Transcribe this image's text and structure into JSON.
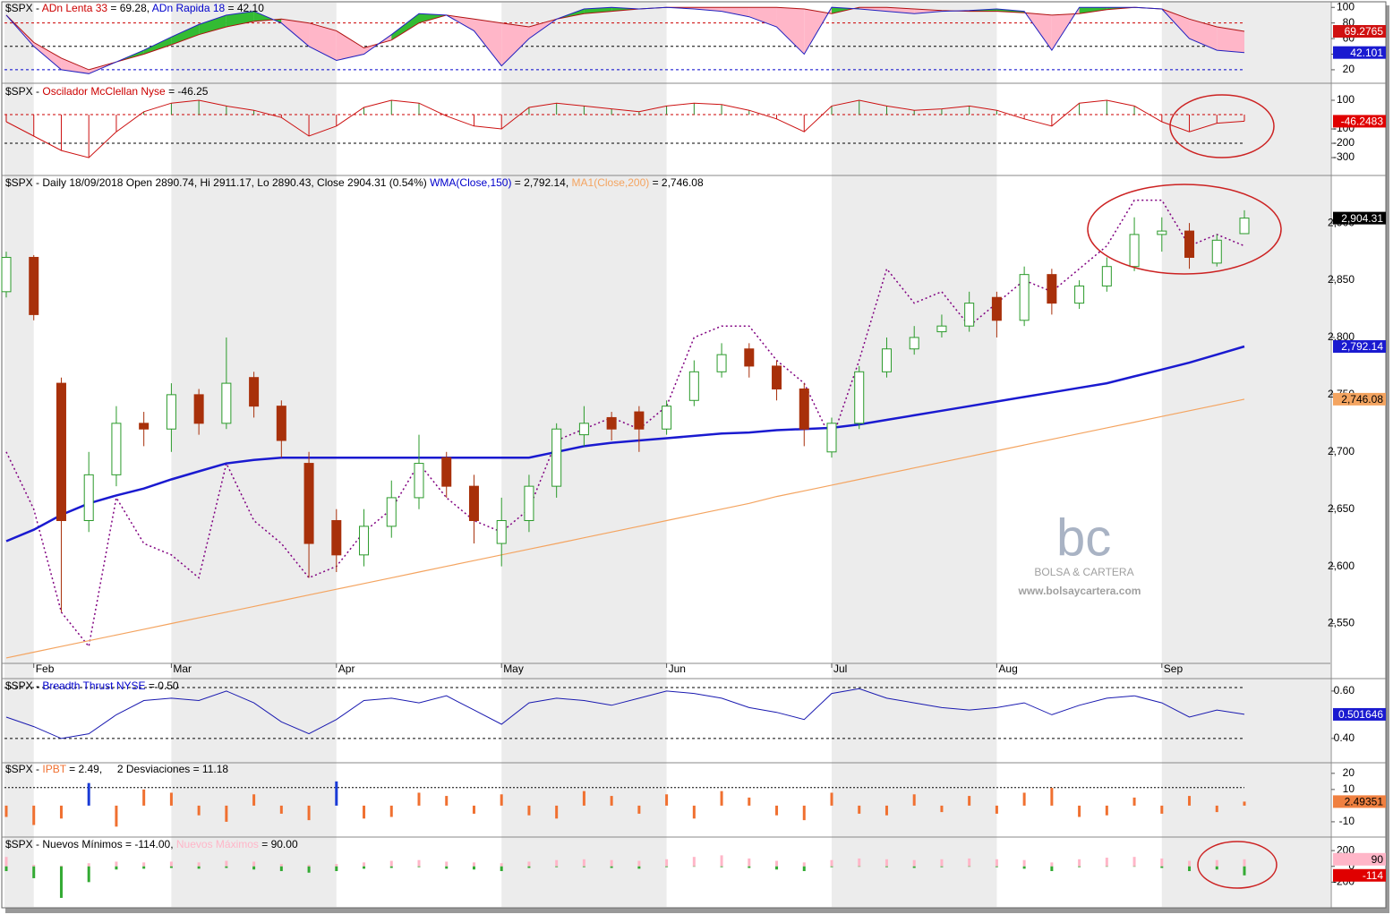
{
  "chart_data": [
    {
      "type": "band",
      "title_parts": [
        {
          "text": "$SPX - ",
          "color": "#000000"
        },
        {
          "text": "ADn Lenta 33",
          "color": "#cc0000"
        },
        {
          "text": " = 69.28, ",
          "color": "#000000"
        },
        {
          "text": "ADn Rapida 18",
          "color": "#0000cc"
        },
        {
          "text": " = 42.10",
          "color": "#000000"
        }
      ],
      "ylim": [
        5,
        106
      ],
      "yticks": [
        100,
        80,
        60,
        40,
        20
      ],
      "levels": [
        {
          "value": 80,
          "color": "#cc0000"
        },
        {
          "value": 50,
          "color": "#000000"
        },
        {
          "value": 20,
          "color": "#0000cc"
        }
      ],
      "fill_up": "#33bb33",
      "fill_down": "#ffb6c8",
      "series": [
        {
          "color": "#b01010",
          "badge_color": "#d01010",
          "values": [
            90,
            55,
            35,
            20,
            30,
            40,
            52,
            65,
            75,
            82,
            85,
            80,
            70,
            48,
            58,
            80,
            90,
            85,
            80,
            75,
            85,
            92,
            95,
            98,
            100,
            100,
            100,
            100,
            100,
            98,
            92,
            100,
            100,
            98,
            96,
            95,
            95,
            93,
            90,
            92,
            97,
            100,
            98,
            85,
            75,
            69.2765
          ]
        },
        {
          "color": "#2020c0",
          "badge_color": "#1a1ad0",
          "values": [
            90,
            50,
            20,
            15,
            30,
            45,
            62,
            78,
            90,
            95,
            80,
            50,
            32,
            40,
            65,
            92,
            90,
            70,
            25,
            60,
            85,
            98,
            100,
            98,
            100,
            98,
            95,
            88,
            75,
            40,
            100,
            98,
            95,
            92,
            95,
            96,
            98,
            95,
            45,
            100,
            100,
            100,
            98,
            60,
            45,
            42.101
          ]
        }
      ]
    },
    {
      "type": "stem",
      "title_parts": [
        {
          "text": "$SPX - ",
          "color": "#000000"
        },
        {
          "text": "Oscilador McClellan Nyse",
          "color": "#cc0000"
        },
        {
          "text": " = -46.25",
          "color": "#000000"
        }
      ],
      "ylim": [
        -412,
        200
      ],
      "yticks": [
        100,
        -100,
        -200,
        -300
      ],
      "levels": [
        {
          "value": 0,
          "color": "#cc0000"
        },
        {
          "value": -200,
          "color": "#000000"
        }
      ],
      "up_color": "#2a8a2a",
      "down_color": "#cc1111",
      "series": [
        {
          "color": "#cc1111",
          "badge_color": "#e00000",
          "values": [
            -50,
            -150,
            -250,
            -300,
            -120,
            20,
            80,
            100,
            60,
            30,
            -20,
            -150,
            -80,
            50,
            100,
            80,
            -10,
            -80,
            -100,
            50,
            80,
            60,
            40,
            20,
            60,
            80,
            70,
            30,
            -30,
            -120,
            60,
            100,
            60,
            30,
            40,
            60,
            30,
            -30,
            -80,
            80,
            100,
            60,
            -50,
            -120,
            -60,
            -46.2483
          ]
        }
      ]
    },
    {
      "type": "candlestick",
      "title_parts": [
        {
          "text": "$SPX - Daily 18/09/2018 Open 2890.74, Hi 2911.17, Lo 2890.43, Close 2904.31 (0.54%) ",
          "color": "#000000"
        },
        {
          "text": "WMA(Close,150)",
          "color": "#0000cc"
        },
        {
          "text": " = 2,792.14, ",
          "color": "#000000"
        },
        {
          "text": "MA1(Close,200)",
          "color": "#f4a460"
        },
        {
          "text": " = 2,746.08",
          "color": "#000000"
        }
      ],
      "ylim": [
        2516,
        2940
      ],
      "yticks": [
        {
          "value": 2550,
          "label": "2,550"
        },
        {
          "value": 2600,
          "label": "2,600"
        },
        {
          "value": 2650,
          "label": "2,650"
        },
        {
          "value": 2700,
          "label": "2,700"
        },
        {
          "value": 2750,
          "label": "2,750"
        },
        {
          "value": 2800,
          "label": "2,800"
        },
        {
          "value": 2850,
          "label": "2,850"
        },
        {
          "value": 2900,
          "label": "2,900"
        }
      ],
      "categories": [
        null,
        "Feb",
        null,
        null,
        null,
        null,
        "Mar",
        null,
        null,
        null,
        null,
        null,
        "Apr",
        null,
        null,
        null,
        null,
        null,
        "May",
        null,
        null,
        null,
        null,
        null,
        "Jun",
        null,
        null,
        null,
        null,
        null,
        "Jul",
        null,
        null,
        null,
        null,
        null,
        "Aug",
        null,
        null,
        null,
        null,
        null,
        "Sep",
        null,
        null,
        null
      ],
      "up_color": "#2a9a2a",
      "down_color": "#a8300a",
      "badge_color": "#000000",
      "open": [
        2840,
        2870,
        2760,
        2640,
        2680,
        2725,
        2720,
        2750,
        2725,
        2765,
        2740,
        2690,
        2640,
        2610,
        2635,
        2660,
        2695,
        2670,
        2620,
        2640,
        2670,
        2715,
        2730,
        2735,
        2720,
        2745,
        2770,
        2790,
        2775,
        2755,
        2700,
        2725,
        2770,
        2790,
        2805,
        2810,
        2835,
        2815,
        2855,
        2830,
        2845,
        2862,
        2890,
        2893,
        2865,
        2890.74
      ],
      "high": [
        2875,
        2872,
        2765,
        2700,
        2740,
        2735,
        2760,
        2755,
        2800,
        2770,
        2745,
        2700,
        2650,
        2650,
        2675,
        2715,
        2700,
        2680,
        2660,
        2680,
        2725,
        2740,
        2735,
        2740,
        2745,
        2780,
        2795,
        2795,
        2780,
        2760,
        2730,
        2775,
        2800,
        2810,
        2820,
        2840,
        2840,
        2862,
        2860,
        2850,
        2870,
        2905,
        2905,
        2900,
        2890,
        2911.17
      ],
      "low": [
        2835,
        2815,
        2560,
        2630,
        2670,
        2705,
        2700,
        2715,
        2720,
        2730,
        2695,
        2590,
        2595,
        2600,
        2625,
        2650,
        2660,
        2620,
        2600,
        2630,
        2660,
        2705,
        2710,
        2700,
        2715,
        2740,
        2765,
        2765,
        2745,
        2705,
        2695,
        2720,
        2765,
        2785,
        2800,
        2805,
        2800,
        2810,
        2820,
        2825,
        2840,
        2858,
        2875,
        2860,
        2862,
        2890.43
      ],
      "close": [
        2870,
        2820,
        2640,
        2680,
        2725,
        2720,
        2750,
        2725,
        2760,
        2740,
        2710,
        2620,
        2610,
        2635,
        2660,
        2690,
        2670,
        2640,
        2640,
        2670,
        2720,
        2725,
        2720,
        2720,
        2740,
        2770,
        2785,
        2775,
        2755,
        2720,
        2725,
        2770,
        2790,
        2800,
        2810,
        2830,
        2815,
        2855,
        2830,
        2845,
        2862,
        2890,
        2893,
        2870,
        2885,
        2904.31
      ],
      "value_labels": [
        null,
        null,
        null,
        null,
        null,
        null,
        null,
        null,
        null,
        null,
        null,
        null,
        null,
        null,
        null,
        null,
        null,
        null,
        null,
        null,
        null,
        null,
        null,
        null,
        null,
        null,
        null,
        null,
        null,
        null,
        null,
        null,
        null,
        null,
        null,
        null,
        null,
        null,
        null,
        null,
        null,
        null,
        null,
        null,
        null,
        "2,904.31"
      ],
      "series": [
        {
          "color": "#800080",
          "dash": "2 3",
          "width": 1.5,
          "values": [
            2700,
            2650,
            2560,
            2530,
            2660,
            2620,
            2610,
            2590,
            2690,
            2640,
            2620,
            2590,
            2600,
            2630,
            2650,
            2690,
            2660,
            2640,
            2630,
            2650,
            2710,
            2720,
            2730,
            2720,
            2740,
            2800,
            2810,
            2810,
            2780,
            2760,
            2710,
            2780,
            2860,
            2830,
            2840,
            2810,
            2830,
            2850,
            2840,
            2860,
            2880,
            2920,
            2920,
            2880,
            2890,
            2880
          ]
        },
        {
          "color": "#f4a460",
          "width": 1.2,
          "badge_text_color": "#000000",
          "values": [
            2520,
            2525,
            2530,
            2535,
            2540,
            2545,
            2550,
            2555,
            2560,
            2565,
            2570,
            2575,
            2580,
            2585,
            2590,
            2595,
            2600,
            2605,
            2610,
            2615,
            2620,
            2625,
            2630,
            2635,
            2640,
            2645,
            2650,
            2655,
            2661,
            2666,
            2671,
            2676,
            2681,
            2686,
            2691,
            2696,
            2701,
            2706,
            2711,
            2716,
            2721,
            2726,
            2731,
            2736,
            2741,
            2746.08
          ],
          "value_labels": [
            null,
            null,
            null,
            null,
            null,
            null,
            null,
            null,
            null,
            null,
            null,
            null,
            null,
            null,
            null,
            null,
            null,
            null,
            null,
            null,
            null,
            null,
            null,
            null,
            null,
            null,
            null,
            null,
            null,
            null,
            null,
            null,
            null,
            null,
            null,
            null,
            null,
            null,
            null,
            null,
            null,
            null,
            null,
            null,
            null,
            "2,746.08"
          ]
        },
        {
          "color": "#1a1ad0",
          "width": 2.5,
          "values": [
            2622,
            2632,
            2645,
            2655,
            2662,
            2668,
            2676,
            2683,
            2690,
            2693,
            2695,
            2695,
            2695,
            2695,
            2695,
            2695,
            2695,
            2695,
            2695,
            2695,
            2700,
            2705,
            2708,
            2710,
            2712,
            2714,
            2716,
            2717,
            2719,
            2720,
            2721,
            2724,
            2728,
            2732,
            2736,
            2740,
            2744,
            2748,
            2752,
            2756,
            2760,
            2766,
            2772,
            2778,
            2785,
            2792.14
          ],
          "value_labels": [
            null,
            null,
            null,
            null,
            null,
            null,
            null,
            null,
            null,
            null,
            null,
            null,
            null,
            null,
            null,
            null,
            null,
            null,
            null,
            null,
            null,
            null,
            null,
            null,
            null,
            null,
            null,
            null,
            null,
            null,
            null,
            null,
            null,
            null,
            null,
            null,
            null,
            null,
            null,
            null,
            null,
            null,
            null,
            null,
            null,
            "2,792.14"
          ]
        }
      ]
    },
    {
      "type": "line",
      "title_parts": [
        {
          "text": "$SPX - ",
          "color": "#000000"
        },
        {
          "text": "Breadth Thrust NYSE",
          "color": "#0000cc"
        },
        {
          "text": " = 0.50",
          "color": "#000000"
        }
      ],
      "ylim": [
        0.305,
        0.645
      ],
      "yticks": [
        {
          "value": 0.6,
          "label": "0.60"
        },
        {
          "value": 0.4,
          "label": "0.40"
        }
      ],
      "levels": [
        {
          "value": 0.615,
          "color": "#000000"
        },
        {
          "value": 0.4,
          "color": "#000000"
        }
      ],
      "series": [
        {
          "color": "#1a1ab0",
          "badge_color": "#1a1ad0",
          "width": 1,
          "values": [
            0.49,
            0.45,
            0.4,
            0.42,
            0.5,
            0.56,
            0.57,
            0.56,
            0.6,
            0.55,
            0.47,
            0.42,
            0.48,
            0.56,
            0.57,
            0.55,
            0.58,
            0.52,
            0.46,
            0.55,
            0.57,
            0.56,
            0.54,
            0.57,
            0.6,
            0.59,
            0.57,
            0.53,
            0.51,
            0.48,
            0.59,
            0.61,
            0.57,
            0.55,
            0.53,
            0.52,
            0.53,
            0.55,
            0.5,
            0.54,
            0.57,
            0.58,
            0.55,
            0.49,
            0.52,
            0.501646
          ]
        }
      ]
    },
    {
      "type": "bar",
      "title_parts": [
        {
          "text": "$SPX - ",
          "color": "#000000"
        },
        {
          "text": "IPBT",
          "color": "#f07030"
        },
        {
          "text": " = 2.49,     2 Desviaciones = 11.18",
          "color": "#000000"
        }
      ],
      "ylim": [
        -17.8,
        26
      ],
      "yticks": [
        20,
        10,
        -10
      ],
      "deviation": 11.18,
      "highlight_color": "#1a3bd6",
      "series": [
        {
          "color": "#f07030",
          "badge_color": "#f08040",
          "badge_text_color": "#000000",
          "values": [
            -7,
            -12,
            -8,
            14,
            -13,
            10,
            8,
            -6,
            -10,
            7,
            -5,
            -9,
            15,
            -8,
            -7,
            8,
            6,
            -5,
            7,
            -6,
            -8,
            9,
            6,
            -5,
            7,
            -8,
            9,
            5,
            -6,
            -9,
            8,
            -5,
            -6,
            7,
            -4,
            6,
            -5,
            8,
            11,
            -7,
            -6,
            5,
            -5,
            6,
            -4,
            2.49351
          ]
        }
      ]
    },
    {
      "type": "bar",
      "title_parts": [
        {
          "text": "$SPX - Nuevos Mínimos = -114.00, ",
          "color": "#000000"
        },
        {
          "text": "Nuevos Máximos",
          "color": "#ffb6c8"
        },
        {
          "text": " = 90.00",
          "color": "#000000"
        }
      ],
      "ylim": [
        -480,
        349
      ],
      "yticks": [
        200,
        0,
        -200
      ],
      "series": [
        {
          "color": "#ffb6c8",
          "badge_text_color": "#000000",
          "values": [
            120,
            20,
            10,
            40,
            60,
            50,
            60,
            50,
            70,
            60,
            30,
            20,
            30,
            50,
            70,
            80,
            60,
            50,
            40,
            60,
            80,
            90,
            80,
            70,
            90,
            120,
            140,
            100,
            70,
            50,
            80,
            100,
            90,
            80,
            90,
            100,
            90,
            80,
            50,
            90,
            110,
            120,
            100,
            70,
            80,
            90
          ]
        },
        {
          "color": "#33aa33",
          "badge_color": "#e00000",
          "values": [
            -60,
            -150,
            -400,
            -200,
            -40,
            -30,
            -20,
            -30,
            -20,
            -40,
            -60,
            -80,
            -60,
            -30,
            -20,
            -10,
            -30,
            -40,
            -60,
            -20,
            -10,
            -10,
            -20,
            -30,
            -10,
            -5,
            -10,
            -20,
            -40,
            -60,
            -10,
            -5,
            -10,
            -20,
            -10,
            -5,
            -10,
            -30,
            -60,
            -10,
            -5,
            -5,
            -20,
            -60,
            -40,
            -114
          ]
        }
      ]
    }
  ],
  "watermark": {
    "logo": "bc",
    "name": "BOLSA & CARTERA",
    "url": "www.bolsaycartera.com"
  }
}
